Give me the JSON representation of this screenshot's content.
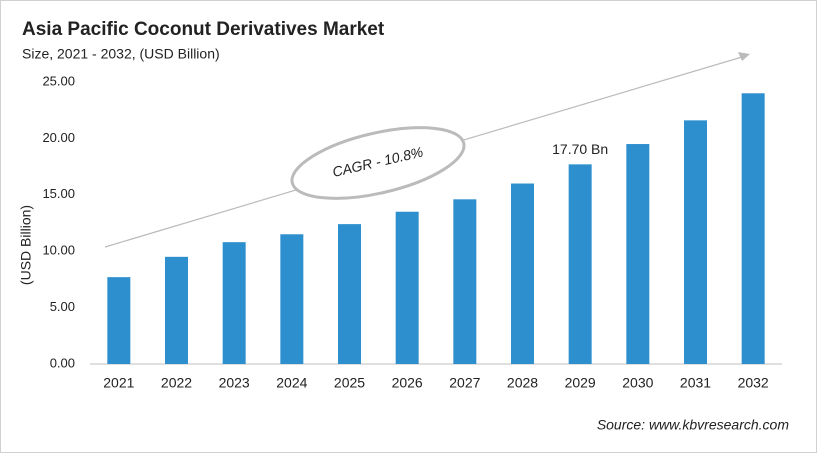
{
  "chart_data": {
    "type": "bar",
    "title": "Asia Pacific Coconut  Derivatives Market",
    "subtitle": "Size, 2021 - 2032, (USD Billion)",
    "y_label": "(USD Billion)",
    "annotation": "CAGR - 10.8%",
    "source": "Source: www.kbvresearch.com",
    "categories": [
      "2021",
      "2022",
      "2023",
      "2024",
      "2025",
      "2026",
      "2027",
      "2028",
      "2029",
      "2030",
      "2031",
      "2032"
    ],
    "values": [
      7.7,
      9.5,
      10.8,
      11.5,
      12.4,
      13.5,
      14.6,
      16.0,
      17.7,
      19.5,
      21.6,
      24.0
    ],
    "value_labels": [
      null,
      null,
      null,
      null,
      null,
      null,
      null,
      null,
      "17.70 Bn",
      null,
      null,
      null
    ],
    "color": "#2e8fce",
    "ylim": [
      0,
      25
    ],
    "yticks": [
      {
        "value": 0,
        "label": "0.00"
      },
      {
        "value": 5,
        "label": "5.00"
      },
      {
        "value": 10,
        "label": "10.00"
      },
      {
        "value": 15,
        "label": "15.00"
      },
      {
        "value": 20,
        "label": "20.00"
      },
      {
        "value": 25,
        "label": "25.00"
      }
    ],
    "grid": false
  }
}
